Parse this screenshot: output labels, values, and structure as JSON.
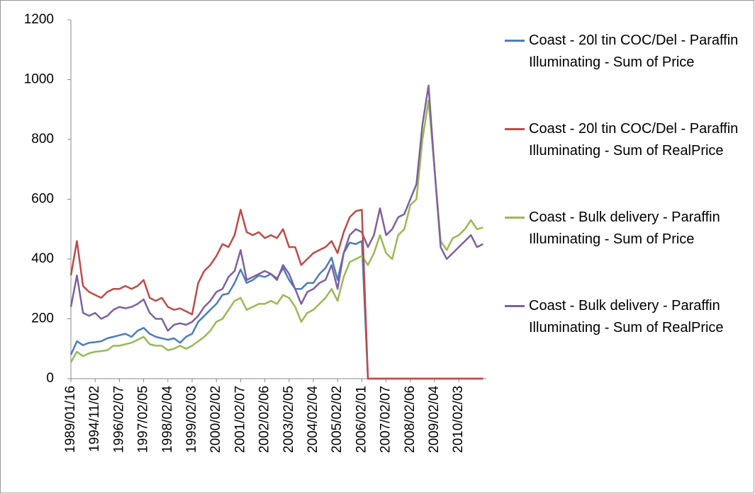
{
  "chart_data": {
    "type": "line",
    "categories": [
      "1989/01/16",
      null,
      null,
      null,
      "1994/11/02",
      null,
      null,
      null,
      "1996/02/07",
      null,
      null,
      null,
      "1997/02/05",
      null,
      null,
      null,
      "1998/02/04",
      null,
      null,
      null,
      "1999/02/03",
      null,
      null,
      null,
      "2000/02/02",
      null,
      null,
      null,
      "2001/02/07",
      null,
      null,
      null,
      "2002/02/06",
      null,
      null,
      null,
      "2003/02/05",
      null,
      null,
      null,
      "2004/02/04",
      null,
      null,
      null,
      "2005/02/02",
      null,
      null,
      null,
      "2006/02/01",
      null,
      null,
      null,
      "2007/02/07",
      null,
      null,
      null,
      "2008/02/06",
      null,
      null,
      null,
      "2009/02/04",
      null,
      null,
      null,
      "2010/02/03",
      null,
      null,
      null,
      null
    ],
    "series": [
      {
        "name": "Coast - 20l tin COC/Del  - Paraffin Illuminating - Sum of Price",
        "color": "#4a7ebb",
        "values": [
          80,
          125,
          112,
          120,
          122,
          125,
          135,
          140,
          145,
          150,
          140,
          160,
          170,
          150,
          140,
          135,
          130,
          135,
          120,
          140,
          150,
          190,
          210,
          230,
          250,
          280,
          285,
          320,
          365,
          320,
          330,
          345,
          340,
          350,
          335,
          370,
          330,
          300,
          300,
          320,
          320,
          350,
          370,
          405,
          330,
          420,
          455,
          450,
          460,
          0,
          0,
          0,
          0,
          0,
          0,
          0,
          0,
          0,
          0,
          0,
          0,
          0,
          0,
          0,
          0,
          0,
          0,
          0,
          0
        ]
      },
      {
        "name": "Coast - 20l tin COC/Del  - Paraffin Illuminating - Sum of RealPrice",
        "color": "#be4b48",
        "values": [
          345,
          460,
          310,
          290,
          280,
          270,
          290,
          300,
          300,
          310,
          300,
          310,
          330,
          270,
          260,
          270,
          240,
          230,
          235,
          225,
          215,
          320,
          360,
          380,
          410,
          450,
          440,
          480,
          565,
          490,
          480,
          490,
          470,
          480,
          470,
          500,
          440,
          440,
          380,
          400,
          420,
          430,
          440,
          460,
          420,
          490,
          540,
          560,
          565,
          0,
          0,
          0,
          0,
          0,
          0,
          0,
          0,
          0,
          0,
          0,
          0,
          0,
          0,
          0,
          0,
          0,
          0,
          0,
          0
        ]
      },
      {
        "name": "Coast - Bulk delivery - Paraffin Illuminating - Sum of Price",
        "color": "#98b954",
        "values": [
          55,
          90,
          75,
          85,
          90,
          92,
          95,
          110,
          110,
          115,
          120,
          130,
          140,
          115,
          110,
          110,
          95,
          100,
          110,
          100,
          110,
          125,
          140,
          160,
          190,
          200,
          230,
          260,
          270,
          230,
          240,
          250,
          250,
          260,
          250,
          280,
          270,
          240,
          190,
          220,
          230,
          250,
          270,
          300,
          260,
          340,
          390,
          400,
          410,
          380,
          420,
          480,
          420,
          400,
          480,
          500,
          580,
          600,
          800,
          930,
          700,
          460,
          430,
          470,
          480,
          500,
          530,
          500,
          505
        ]
      },
      {
        "name": "Coast - Bulk delivery - Paraffin Illuminating - Sum of RealPrice",
        "color": "#7d60a0",
        "values": [
          240,
          345,
          220,
          210,
          220,
          200,
          210,
          230,
          240,
          235,
          240,
          250,
          265,
          220,
          200,
          200,
          160,
          180,
          185,
          180,
          190,
          210,
          240,
          260,
          290,
          300,
          340,
          360,
          430,
          330,
          340,
          350,
          360,
          350,
          330,
          380,
          350,
          300,
          250,
          290,
          300,
          320,
          330,
          380,
          300,
          420,
          480,
          500,
          490,
          440,
          480,
          570,
          480,
          500,
          540,
          550,
          600,
          650,
          850,
          980,
          700,
          440,
          400,
          420,
          440,
          460,
          480,
          440,
          450
        ]
      }
    ],
    "ylim": [
      0,
      1200
    ],
    "yticks": [
      0,
      200,
      400,
      600,
      800,
      1000,
      1200
    ],
    "grid": false,
    "legend": "right"
  }
}
